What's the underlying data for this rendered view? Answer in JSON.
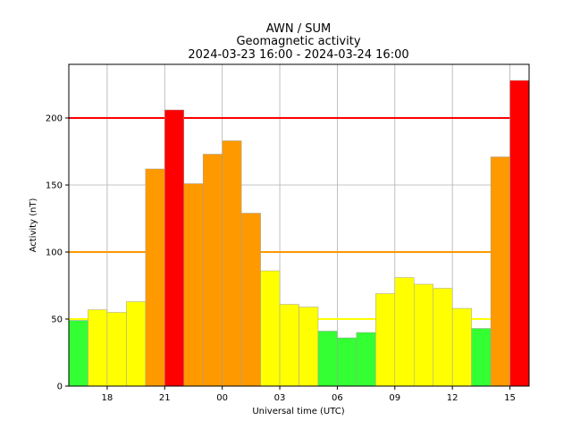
{
  "chart_data": {
    "type": "bar",
    "title_lines": [
      "AWN / SUM",
      "Geomagnetic activity",
      "2024-03-23 16:00 - 2024-03-24 16:00"
    ],
    "xlabel": "Universal time (UTC)",
    "ylabel": "Activity (nT)",
    "x_tick_labels": [
      "18",
      "21",
      "00",
      "03",
      "06",
      "09",
      "12",
      "15"
    ],
    "x_tick_hours": [
      18,
      21,
      24,
      27,
      30,
      33,
      36,
      39
    ],
    "x_range_hours": [
      16,
      40
    ],
    "y_ticks": [
      0,
      50,
      100,
      150,
      200
    ],
    "ylim": [
      0,
      240
    ],
    "grid": true,
    "bars": [
      {
        "start_hour": 16,
        "value": 49,
        "color": "#33ff33"
      },
      {
        "start_hour": 17,
        "value": 57,
        "color": "#ffff00"
      },
      {
        "start_hour": 18,
        "value": 55,
        "color": "#ffff00"
      },
      {
        "start_hour": 19,
        "value": 63,
        "color": "#ffff00"
      },
      {
        "start_hour": 20,
        "value": 162,
        "color": "#ff9900"
      },
      {
        "start_hour": 21,
        "value": 206,
        "color": "#ff0000"
      },
      {
        "start_hour": 22,
        "value": 151,
        "color": "#ff9900"
      },
      {
        "start_hour": 23,
        "value": 173,
        "color": "#ff9900"
      },
      {
        "start_hour": 24,
        "value": 183,
        "color": "#ff9900"
      },
      {
        "start_hour": 25,
        "value": 129,
        "color": "#ff9900"
      },
      {
        "start_hour": 26,
        "value": 86,
        "color": "#ffff00"
      },
      {
        "start_hour": 27,
        "value": 61,
        "color": "#ffff00"
      },
      {
        "start_hour": 28,
        "value": 59,
        "color": "#ffff00"
      },
      {
        "start_hour": 29,
        "value": 41,
        "color": "#33ff33"
      },
      {
        "start_hour": 30,
        "value": 36,
        "color": "#33ff33"
      },
      {
        "start_hour": 31,
        "value": 40,
        "color": "#33ff33"
      },
      {
        "start_hour": 32,
        "value": 69,
        "color": "#ffff00"
      },
      {
        "start_hour": 33,
        "value": 81,
        "color": "#ffff00"
      },
      {
        "start_hour": 34,
        "value": 76,
        "color": "#ffff00"
      },
      {
        "start_hour": 35,
        "value": 73,
        "color": "#ffff00"
      },
      {
        "start_hour": 36,
        "value": 58,
        "color": "#ffff00"
      },
      {
        "start_hour": 37,
        "value": 43,
        "color": "#33ff33"
      },
      {
        "start_hour": 38,
        "value": 171,
        "color": "#ff9900"
      },
      {
        "start_hour": 39,
        "value": 228,
        "color": "#ff0000"
      }
    ],
    "threshold_lines": [
      {
        "value": 50,
        "color": "#ffff00"
      },
      {
        "value": 100,
        "color": "#ff9900"
      },
      {
        "value": 200,
        "color": "#ff0000"
      }
    ]
  }
}
